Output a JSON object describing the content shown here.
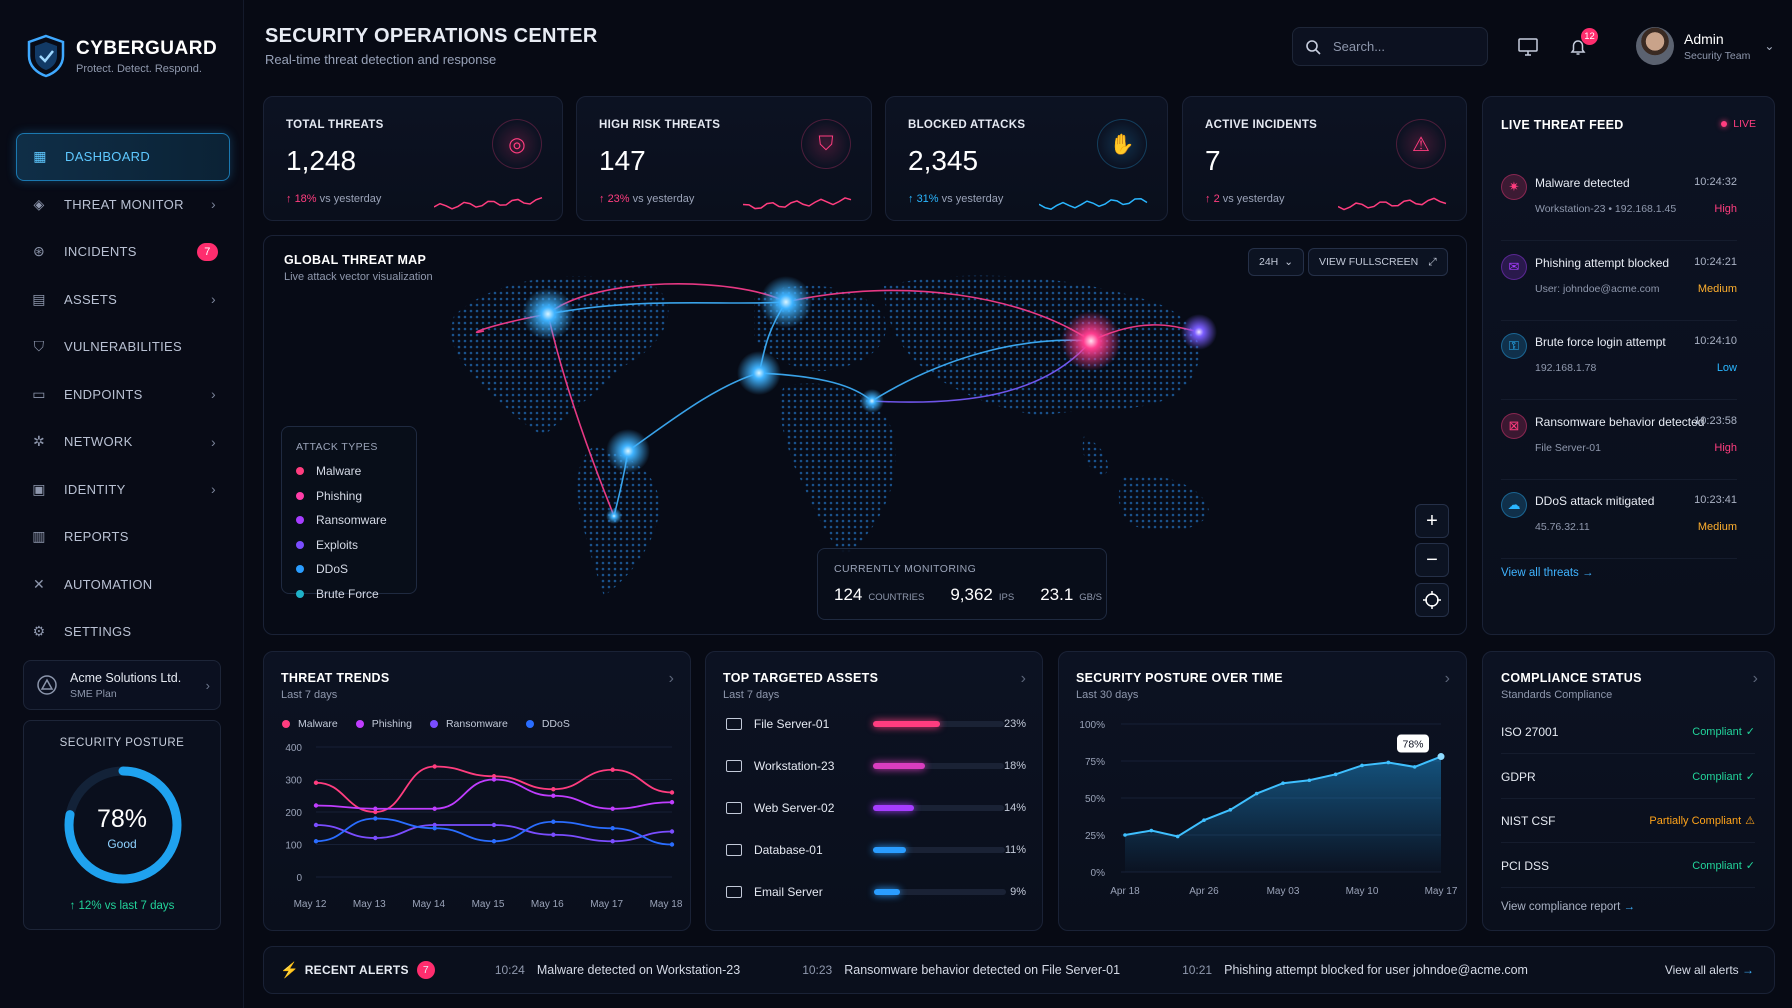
{
  "brand": {
    "name": "CYBERGUARD",
    "tagline": "Protect. Detect. Respond."
  },
  "nav": {
    "items": [
      {
        "label": "DASHBOARD",
        "icon": "grid-icon",
        "active": true
      },
      {
        "label": "THREAT MONITOR",
        "icon": "shield-eye-icon",
        "chevron": true
      },
      {
        "label": "INCIDENTS",
        "icon": "incident-icon",
        "badge": "7"
      },
      {
        "label": "ASSETS",
        "icon": "server-icon",
        "chevron": true
      },
      {
        "label": "VULNERABILITIES",
        "icon": "shield-icon"
      },
      {
        "label": "ENDPOINTS",
        "icon": "monitor-icon",
        "chevron": true
      },
      {
        "label": "NETWORK",
        "icon": "network-icon",
        "chevron": true
      },
      {
        "label": "IDENTITY",
        "icon": "id-card-icon",
        "chevron": true
      },
      {
        "label": "REPORTS",
        "icon": "report-icon"
      },
      {
        "label": "AUTOMATION",
        "icon": "wrench-icon"
      },
      {
        "label": "SETTINGS",
        "icon": "gear-icon"
      }
    ]
  },
  "org": {
    "name": "Acme Solutions Ltd.",
    "plan": "SME Plan"
  },
  "posture": {
    "title": "SECURITY POSTURE",
    "value": "78%",
    "fraction": 0.78,
    "rating": "Good",
    "delta": "12% vs last 7 days"
  },
  "header": {
    "title": "SECURITY OPERATIONS CENTER",
    "subtitle": "Real-time threat detection and response",
    "notifications": "12"
  },
  "search": {
    "placeholder": "Search..."
  },
  "user": {
    "name": "Admin",
    "role": "Security Team"
  },
  "kpis": [
    {
      "title": "TOTAL THREATS",
      "value": "1,248",
      "delta": "18%",
      "suffix": "vs yesterday",
      "color": "#ff3d7f",
      "icon": "target-icon"
    },
    {
      "title": "HIGH RISK THREATS",
      "value": "147",
      "delta": "23%",
      "suffix": "vs yesterday",
      "color": "#ff3d7f",
      "icon": "shield-alert-icon"
    },
    {
      "title": "BLOCKED ATTACKS",
      "value": "2,345",
      "delta": "31%",
      "suffix": "vs yesterday",
      "color": "#2ab6ff",
      "icon": "hand-stop-icon"
    },
    {
      "title": "ACTIVE INCIDENTS",
      "value": "7",
      "delta": "2",
      "suffix": "vs yesterday",
      "color": "#ff3d7f",
      "icon": "warning-icon"
    }
  ],
  "map": {
    "title": "GLOBAL THREAT MAP",
    "subtitle": "Live attack vector visualization",
    "range_button": "24H",
    "fullscreen_button": "VIEW FULLSCREEN",
    "legend_title": "ATTACK TYPES",
    "legend": [
      {
        "label": "Malware",
        "color": "#ff3d7f"
      },
      {
        "label": "Phishing",
        "color": "#ff3da8"
      },
      {
        "label": "Ransomware",
        "color": "#a63dff"
      },
      {
        "label": "Exploits",
        "color": "#7a4dff"
      },
      {
        "label": "DDoS",
        "color": "#2a9dff"
      },
      {
        "label": "Brute Force",
        "color": "#1fb2c9"
      }
    ],
    "monitoring_title": "CURRENTLY MONITORING",
    "stats": [
      {
        "value": "124",
        "label": "COUNTRIES"
      },
      {
        "value": "9,362",
        "label": "IPS"
      },
      {
        "value": "23.1",
        "label": "GB/S"
      }
    ]
  },
  "feed": {
    "title": "LIVE THREAT FEED",
    "live_label": "LIVE",
    "items": [
      {
        "title": "Malware detected",
        "time": "10:24:32",
        "detail": "Workstation-23 • 192.168.1.45",
        "severity": "High",
        "color": "#ff3d7f",
        "icon": "bug-icon"
      },
      {
        "title": "Phishing attempt blocked",
        "time": "10:24:21",
        "detail": "User: johndoe@acme.com",
        "severity": "Medium",
        "color": "#a63dff",
        "icon": "mail-icon"
      },
      {
        "title": "Brute force login attempt",
        "time": "10:24:10",
        "detail": "192.168.1.78",
        "severity": "Low",
        "color": "#2ab6ff",
        "icon": "key-icon"
      },
      {
        "title": "Ransomware behavior detected",
        "time": "10:23:58",
        "detail": "File Server-01",
        "severity": "High",
        "color": "#ff3d7f",
        "icon": "lock-icon"
      },
      {
        "title": "DDoS attack mitigated",
        "time": "10:23:41",
        "detail": "45.76.32.11",
        "severity": "Medium",
        "color": "#2ab6ff",
        "icon": "cloud-icon"
      }
    ],
    "severity_colors": {
      "High": "#ff3d7f",
      "Medium": "#ffb02e",
      "Low": "#2ab6ff"
    },
    "view_all": "View all threats"
  },
  "trends": {
    "title": "THREAT TRENDS",
    "subtitle": "Last 7 days",
    "chart_data": {
      "type": "line",
      "categories": [
        "May 12",
        "May 13",
        "May 14",
        "May 15",
        "May 16",
        "May 17",
        "May 18"
      ],
      "ylim": [
        0,
        400
      ],
      "yticks": [
        0,
        100,
        200,
        300,
        400
      ],
      "series": [
        {
          "name": "Malware",
          "color": "#ff3d7f",
          "values": [
            290,
            200,
            340,
            310,
            270,
            330,
            260
          ]
        },
        {
          "name": "Phishing",
          "color": "#c03dff",
          "values": [
            220,
            210,
            210,
            300,
            250,
            210,
            230
          ]
        },
        {
          "name": "Ransomware",
          "color": "#7a4dff",
          "values": [
            160,
            120,
            160,
            160,
            130,
            110,
            140
          ]
        },
        {
          "name": "DDoS",
          "color": "#2a6dff",
          "values": [
            110,
            180,
            150,
            110,
            170,
            150,
            100
          ]
        }
      ]
    }
  },
  "assets": {
    "title": "TOP TARGETED ASSETS",
    "subtitle": "Last 7 days",
    "chart_data": {
      "type": "bar",
      "categories": [
        "File Server-01",
        "Workstation-23",
        "Web Server-02",
        "Database-01",
        "Email Server"
      ],
      "values": [
        23,
        18,
        14,
        11,
        9
      ],
      "labels": [
        "23%",
        "18%",
        "14%",
        "11%",
        "9%"
      ],
      "colors": [
        "#ff3d7f",
        "#d93dbf",
        "#a63dff",
        "#2a9dff",
        "#2a9dff"
      ],
      "icons": [
        "server-icon",
        "monitor-icon",
        "server-icon",
        "database-icon",
        "mail-icon"
      ],
      "max": 45
    }
  },
  "posture_chart": {
    "title": "SECURITY POSTURE OVER TIME",
    "subtitle": "Last 30 days",
    "callout": "78%",
    "chart_data": {
      "type": "area",
      "x": [
        "Apr 18",
        "Apr 21",
        "Apr 24",
        "Apr 26",
        "Apr 29",
        "May 01",
        "May 03",
        "May 05",
        "May 07",
        "May 10",
        "May 13",
        "May 15",
        "May 17"
      ],
      "values": [
        25,
        28,
        24,
        35,
        42,
        53,
        60,
        62,
        66,
        72,
        74,
        71,
        78
      ],
      "xticks": [
        "Apr 18",
        "Apr 26",
        "May 03",
        "May 10",
        "May 17"
      ],
      "ylabels": [
        "100%",
        "75%",
        "50%",
        "25%",
        "0%"
      ],
      "ylim": [
        0,
        100
      ]
    }
  },
  "compliance": {
    "title": "COMPLIANCE STATUS",
    "subtitle": "Standards Compliance",
    "items": [
      {
        "name": "ISO 27001",
        "status": "Compliant",
        "color": "#22d39a"
      },
      {
        "name": "GDPR",
        "status": "Compliant",
        "color": "#22d39a"
      },
      {
        "name": "NIST CSF",
        "status": "Partially Compliant",
        "color": "#ffa31a"
      },
      {
        "name": "PCI DSS",
        "status": "Compliant",
        "color": "#22d39a"
      }
    ],
    "view_report": "View compliance report"
  },
  "alerts": {
    "title": "RECENT ALERTS",
    "count": "7",
    "items": [
      {
        "time": "10:24",
        "text": "Malware detected on Workstation-23"
      },
      {
        "time": "10:23",
        "text": "Ransomware behavior detected on File Server-01"
      },
      {
        "time": "10:21",
        "text": "Phishing attempt blocked for user johndoe@acme.com"
      }
    ],
    "view_all": "View all alerts"
  }
}
